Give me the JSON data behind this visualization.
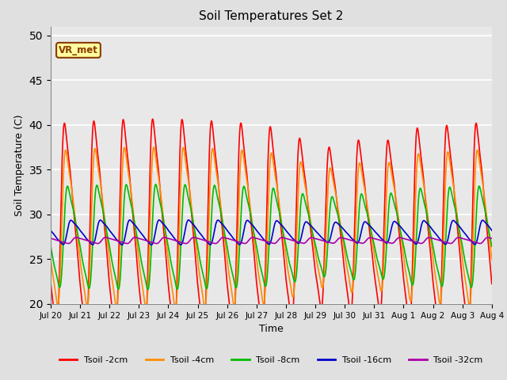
{
  "title": "Soil Temperatures Set 2",
  "xlabel": "Time",
  "ylabel": "Soil Temperature (C)",
  "ylim": [
    20,
    51
  ],
  "yticks": [
    20,
    25,
    30,
    35,
    40,
    45,
    50
  ],
  "x_tick_labels": [
    "Jul 20",
    "Jul 21",
    "Jul 22",
    "Jul 23",
    "Jul 24",
    "Jul 25",
    "Jul 26",
    "Jul 27",
    "Jul 28",
    "Jul 29",
    "Jul 30",
    "Jul 31",
    "Aug 1",
    "Aug 2",
    "Aug 3",
    "Aug 4"
  ],
  "colors": {
    "2cm": "#FF0000",
    "4cm": "#FF8C00",
    "8cm": "#00BB00",
    "16cm": "#0000CC",
    "32cm": "#AA00AA"
  },
  "legend_labels": [
    "Tsoil -2cm",
    "Tsoil -4cm",
    "Tsoil -8cm",
    "Tsoil -16cm",
    "Tsoil -32cm"
  ],
  "annotation_text": "VR_met",
  "bg_color": "#E8E8E8",
  "fig_bg_color": "#E0E0E0",
  "line_width": 1.2
}
